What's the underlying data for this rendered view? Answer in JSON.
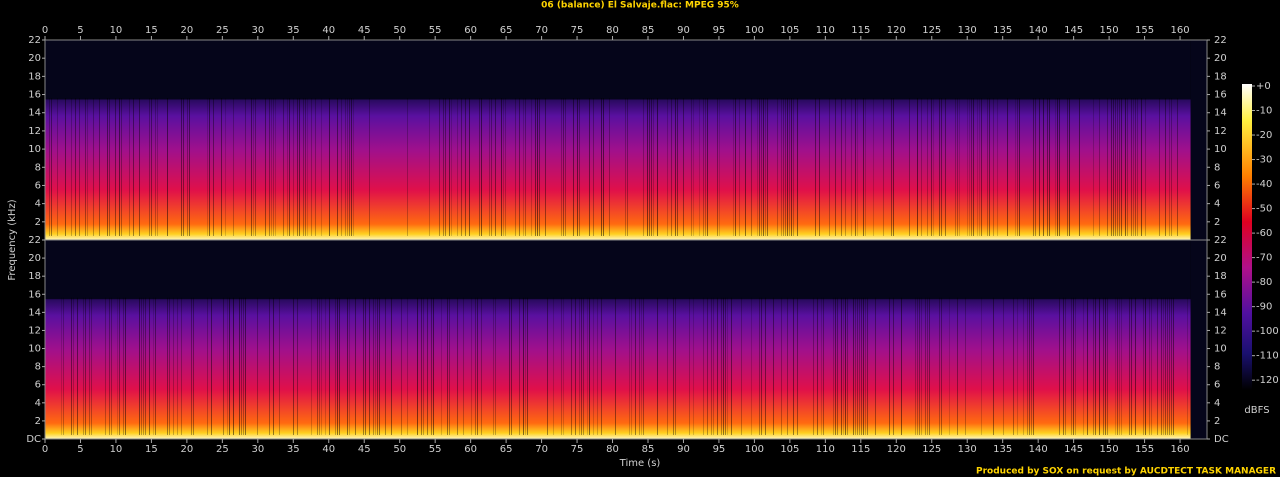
{
  "chart_data": {
    "type": "spectrogram",
    "title": "06 (balance) El Salvaje.flac: MPEG 95%",
    "x_label": "Time (s)",
    "y_label": "Frequency (kHz)",
    "xlim": [
      0,
      163.8
    ],
    "xticks": [
      0,
      5,
      10,
      15,
      20,
      25,
      30,
      35,
      40,
      45,
      50,
      55,
      60,
      65,
      70,
      75,
      80,
      85,
      90,
      95,
      100,
      105,
      110,
      115,
      120,
      125,
      130,
      135,
      140,
      145,
      150,
      155,
      160
    ],
    "panels": [
      {
        "ylim": [
          0,
          22
        ],
        "yticks": [
          2,
          4,
          6,
          8,
          10,
          12,
          14,
          16,
          18,
          20,
          22
        ]
      },
      {
        "ylim": [
          0,
          22
        ],
        "yticks": [
          {
            "value": 0,
            "label": "DC"
          },
          2,
          4,
          6,
          8,
          10,
          12,
          14,
          16,
          18,
          20,
          22
        ]
      }
    ],
    "colorbar": {
      "label": "dBFS",
      "lim": [
        -124,
        0
      ],
      "ticks": [
        {
          "value": 0,
          "label": "+0"
        },
        -10,
        -20,
        -30,
        -40,
        -50,
        -60,
        -70,
        -80,
        -90,
        -100,
        -110,
        -120
      ]
    },
    "footer": "Produced by SOX on request by AUCDTECT TASK MANAGER"
  }
}
